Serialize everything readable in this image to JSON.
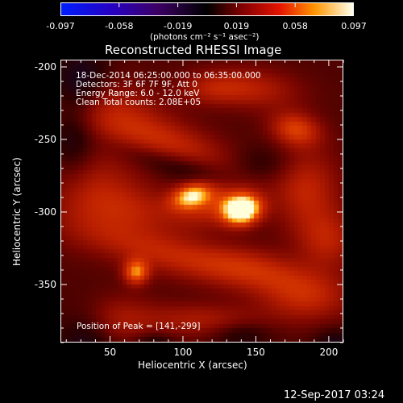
{
  "colorbar": {
    "tick_labels": [
      "-0.097",
      "-0.058",
      "-0.019",
      "0.019",
      "0.058",
      "0.097"
    ],
    "units": "(photons cm⁻² s⁻¹ asec⁻²)"
  },
  "title": "Reconstructed RHESSI Image",
  "info": {
    "line1": "18-Dec-2014 06:25:00.000 to 06:35:00.000",
    "line2": "Detectors: 3F 6F 7F 9F, Att 0",
    "line3": "Energy Range: 6.0 - 12.0 keV",
    "line4": "Clean     Total counts: 2.08E+05",
    "peak": "Position of Peak = [141,-299]"
  },
  "axes": {
    "xlabel": "Heliocentric X (arcsec)",
    "ylabel": "Heliocentric Y (arcsec)",
    "xticks": [
      "50",
      "100",
      "150",
      "200"
    ],
    "yticks": [
      "-200",
      "-250",
      "-300",
      "-350"
    ],
    "xrange": [
      16,
      210
    ],
    "yrange": [
      -390,
      -195
    ]
  },
  "footer": {
    "timestamp": "12-Sep-2017 03:24"
  },
  "colors": {
    "background": "#000000",
    "foreground": "#ffffff"
  }
}
